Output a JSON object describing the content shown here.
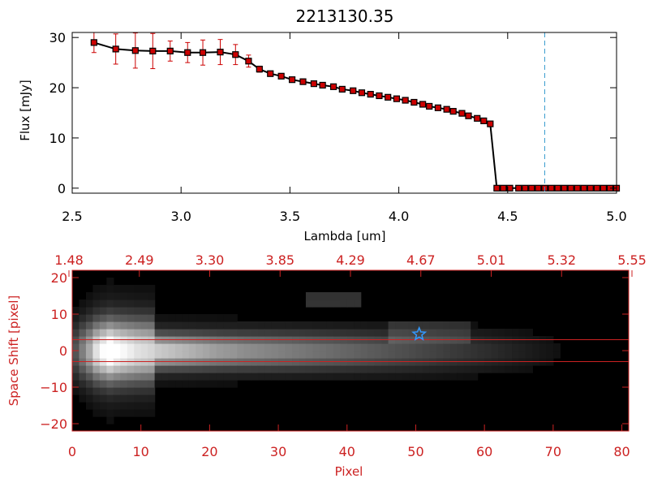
{
  "title": "2213130.35",
  "colors": {
    "top_axes": "#000000",
    "bottom_axes": "#cc2222",
    "marker": "#cc0000",
    "line": "#000000",
    "errorbar": "#cc0000",
    "cutoff_line": "#3399cc",
    "extraction_lines": "#cc2222",
    "star": "#3399ff"
  },
  "chart_data": [
    {
      "type": "line",
      "xlabel": "Lambda [um]",
      "ylabel": "Flux [mJy]",
      "xlim": [
        2.5,
        5.0
      ],
      "ylim": [
        -1,
        31
      ],
      "xticks": [
        2.5,
        3.0,
        3.5,
        4.0,
        4.5,
        5.0
      ],
      "xtick_labels": [
        "2.5",
        "3.0",
        "3.5",
        "4.0",
        "4.5",
        "5.0"
      ],
      "yticks": [
        0,
        10,
        20,
        30
      ],
      "ytick_labels": [
        "0",
        "10",
        "20",
        "30"
      ],
      "cutoff_x": 4.67,
      "series": [
        {
          "x": [
            2.6,
            2.7,
            2.79,
            2.87,
            2.95,
            3.03,
            3.1,
            3.18,
            3.25,
            3.31,
            3.36,
            3.41,
            3.46,
            3.51,
            3.56,
            3.61,
            3.65,
            3.7,
            3.74,
            3.79,
            3.83,
            3.87,
            3.91,
            3.95,
            3.99,
            4.03,
            4.07,
            4.11,
            4.14,
            4.18,
            4.22,
            4.25,
            4.29,
            4.32,
            4.36,
            4.39,
            4.42,
            4.45,
            4.48,
            4.51,
            4.55,
            4.58,
            4.61,
            4.64,
            4.67,
            4.7,
            4.73,
            4.76,
            4.79,
            4.82,
            4.85,
            4.88,
            4.91,
            4.94,
            4.97,
            5.0
          ],
          "y": [
            29.0,
            27.7,
            27.4,
            27.3,
            27.3,
            27.0,
            27.0,
            27.1,
            26.6,
            25.3,
            23.7,
            22.8,
            22.3,
            21.6,
            21.2,
            20.8,
            20.5,
            20.2,
            19.7,
            19.4,
            19.0,
            18.7,
            18.4,
            18.1,
            17.8,
            17.5,
            17.1,
            16.7,
            16.3,
            16.0,
            15.7,
            15.3,
            14.9,
            14.4,
            13.9,
            13.4,
            12.8,
            0,
            0,
            0,
            0,
            0,
            0,
            0,
            0,
            0,
            0,
            0,
            0,
            0,
            0,
            0,
            0,
            0,
            0,
            0
          ],
          "yerr": [
            2.0,
            3.0,
            3.5,
            3.5,
            2.0,
            2.0,
            2.5,
            2.5,
            2.0,
            1.2,
            0.6,
            0.5,
            0.4,
            0.4,
            0.3,
            0.3,
            0.3,
            0.3,
            0.3,
            0.3,
            0.3,
            0.3,
            0.3,
            0.3,
            0.3,
            0.3,
            0.3,
            0.3,
            0.3,
            0.3,
            0.3,
            0.3,
            0.3,
            0.3,
            0.3,
            0.3,
            0.3,
            0,
            0,
            0,
            0,
            0,
            0,
            0,
            0,
            0,
            0,
            0,
            0,
            0,
            0,
            0,
            0,
            0,
            0,
            0
          ]
        }
      ]
    },
    {
      "type": "heatmap",
      "xlabel": "Pixel",
      "ylabel": "Space Shift [pixel]",
      "xlim": [
        0,
        81
      ],
      "ylim": [
        -22,
        22
      ],
      "xticks": [
        0,
        10,
        20,
        30,
        40,
        50,
        60,
        70,
        80
      ],
      "xtick_labels": [
        "0",
        "10",
        "20",
        "30",
        "40",
        "50",
        "60",
        "70",
        "80"
      ],
      "yticks": [
        -20,
        -10,
        0,
        10,
        20
      ],
      "ytick_labels": [
        "−20",
        "−10",
        "0",
        "10",
        "20"
      ],
      "top_axis_labels": [
        "1.48",
        "2.49",
        "3.30",
        "3.85",
        "4.29",
        "4.67",
        "5.01",
        "5.32",
        "5.55"
      ],
      "extraction_band": [
        -3,
        3
      ],
      "trace_intensity": [
        0.3,
        0.45,
        0.6,
        0.8,
        0.9,
        1.0,
        0.92,
        0.88,
        0.84,
        0.8,
        0.78,
        0.76,
        0.74,
        0.72,
        0.7,
        0.68,
        0.66,
        0.64,
        0.62,
        0.6,
        0.58,
        0.56,
        0.55,
        0.54,
        0.52,
        0.51,
        0.5,
        0.49,
        0.48,
        0.47,
        0.46,
        0.45,
        0.44,
        0.43,
        0.42,
        0.41,
        0.4,
        0.39,
        0.38,
        0.37,
        0.36,
        0.35,
        0.34,
        0.33,
        0.32,
        0.31,
        0.3,
        0.29,
        0.28,
        0.27,
        0.26,
        0.25,
        0.24,
        0.23,
        0.22,
        0.21,
        0.2,
        0.19,
        0.18,
        0.17,
        0.16,
        0.15,
        0.14,
        0.13,
        0.12,
        0.11,
        0.1,
        0.09,
        0.08,
        0.07,
        0.06,
        0.05,
        0.04,
        0.03,
        0.02,
        0.01,
        0.0,
        0.0,
        0.0,
        0.0,
        0.0
      ],
      "star_marker": {
        "x": 50.5,
        "y": 4.5
      }
    }
  ]
}
